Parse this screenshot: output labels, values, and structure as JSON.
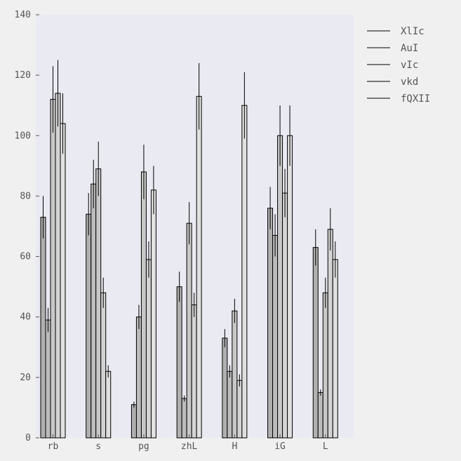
{
  "chart_data": {
    "type": "bar",
    "categories": [
      "rb",
      "s",
      "pg",
      "zhL",
      "H",
      "iG",
      "L"
    ],
    "series": [
      {
        "name": "XlIc",
        "values": [
          73,
          74,
          11,
          50,
          33,
          76,
          63
        ],
        "errors": [
          7,
          7,
          1,
          5,
          3,
          7,
          6
        ],
        "color": "#b0b0b0"
      },
      {
        "name": "AuI",
        "values": [
          39,
          84,
          40,
          13,
          22,
          67,
          15
        ],
        "errors": [
          4,
          8,
          4,
          1,
          2,
          7,
          1
        ],
        "color": "#bcbcbc"
      },
      {
        "name": "vIc",
        "values": [
          112,
          89,
          88,
          71,
          42,
          100,
          48
        ],
        "errors": [
          11,
          9,
          9,
          7,
          4,
          10,
          5
        ],
        "color": "#c8c8c8"
      },
      {
        "name": "vkd",
        "values": [
          114,
          48,
          59,
          44,
          19,
          81,
          69
        ],
        "errors": [
          11,
          5,
          6,
          4,
          2,
          8,
          7
        ],
        "color": "#d4d4d4"
      },
      {
        "name": "fQXII",
        "values": [
          104,
          22,
          82,
          113,
          110,
          100,
          59
        ],
        "errors": [
          10,
          2,
          8,
          11,
          11,
          10,
          6
        ],
        "color": "#e0e0e0"
      }
    ],
    "ylim": [
      0,
      140
    ],
    "yticks": [
      "0",
      "20",
      "40",
      "60",
      "80",
      "100",
      "120",
      "140"
    ],
    "grid": false,
    "legend_position": "outside-right",
    "plot_background": "#eaeaf2",
    "page_background": "#f0f0f0"
  }
}
